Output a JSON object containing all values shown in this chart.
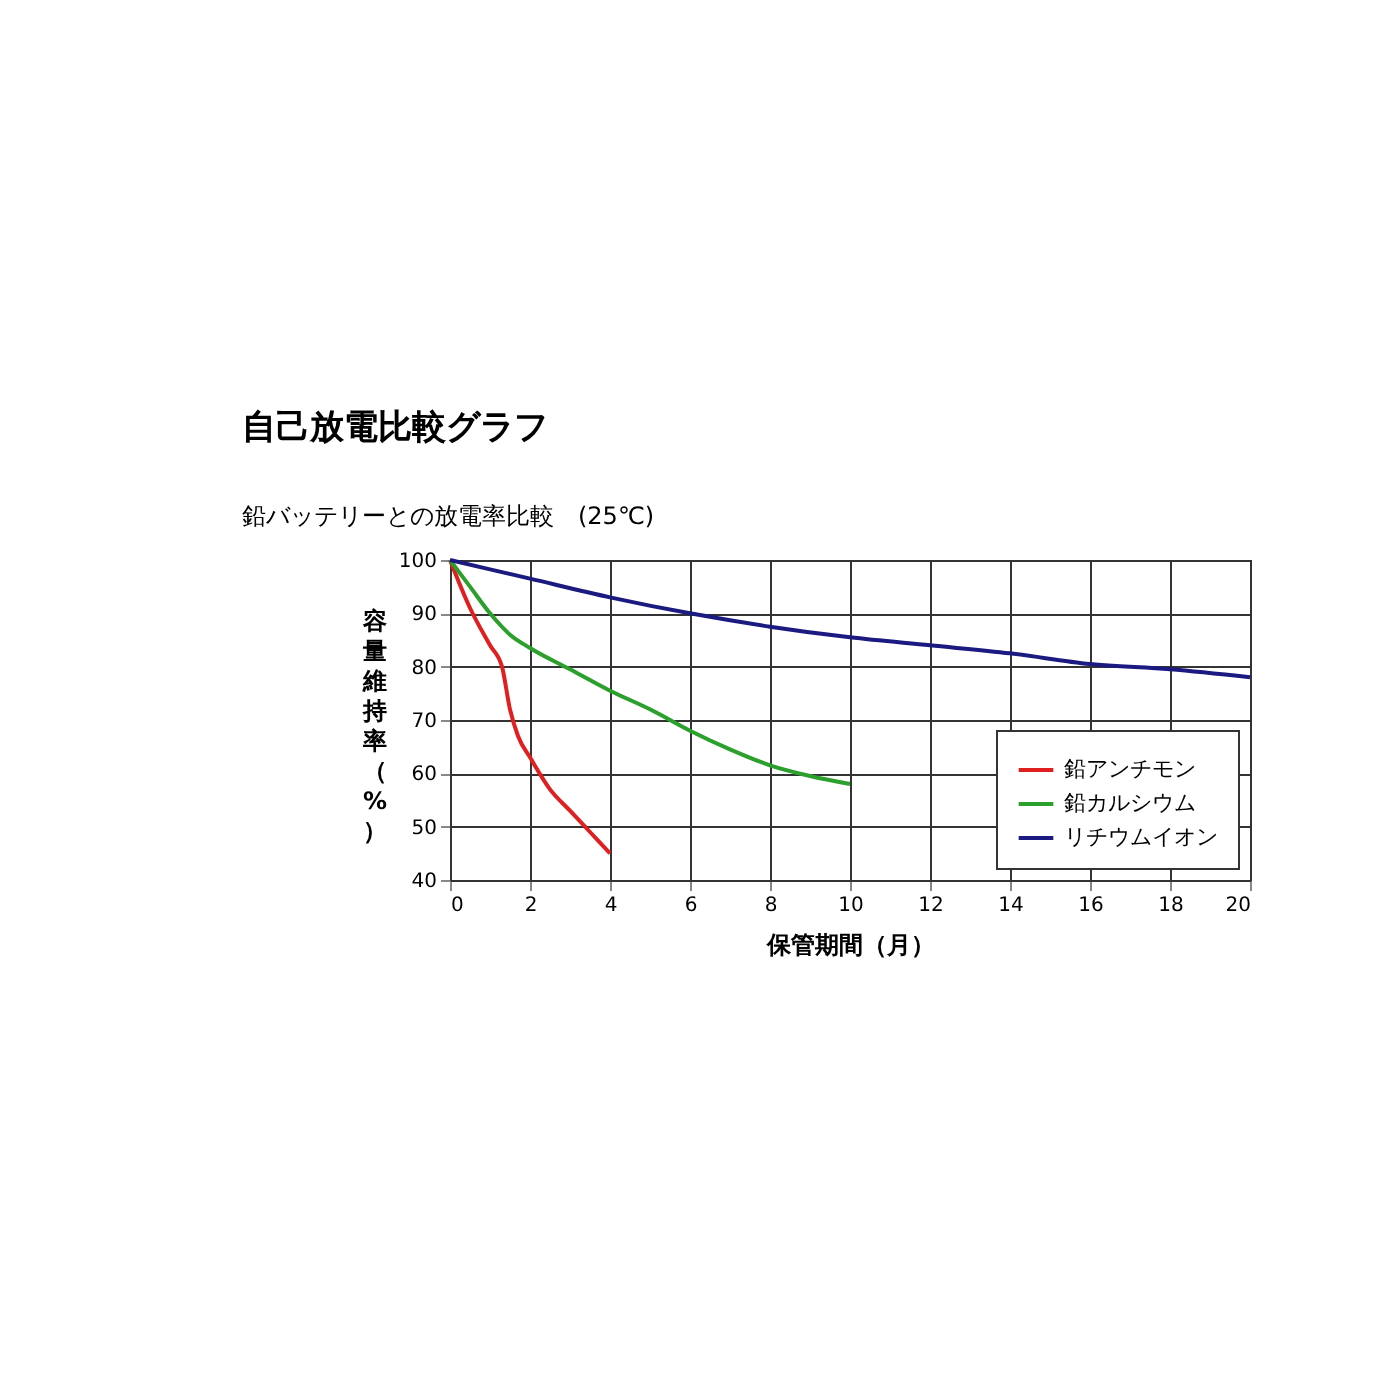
{
  "chart_data": {
    "type": "line",
    "title": "自己放電比較グラフ",
    "subtitle": "鉛バッテリーとの放電率比較　(25℃)",
    "xlabel": "保管期間（月）",
    "ylabel": "容量維持率（%）",
    "xlim": [
      0,
      20
    ],
    "xticks": [
      0,
      2,
      4,
      6,
      8,
      10,
      12,
      14,
      16,
      18,
      20
    ],
    "ylim": [
      40,
      100
    ],
    "yticks": [
      40,
      50,
      60,
      70,
      80,
      90,
      100
    ],
    "grid": true,
    "legend": "bottom right",
    "marker": "none",
    "line_style": "solid",
    "series": [
      {
        "name": "鉛アンチモン",
        "color": "#e02020",
        "x": [
          0,
          0.5,
          1,
          1.3,
          1.5,
          1.7,
          2,
          2.5,
          3,
          3.5,
          4
        ],
        "values": [
          100,
          91,
          84,
          80,
          72,
          67,
          63,
          57,
          53,
          49,
          45
        ]
      },
      {
        "name": "鉛カルシウム",
        "color": "#2ca02c",
        "x": [
          0,
          0.5,
          1,
          1.5,
          2,
          3,
          4,
          5,
          6,
          7,
          8,
          9,
          10
        ],
        "values": [
          100,
          95,
          90,
          86,
          83.5,
          79.5,
          75.5,
          72,
          68,
          64.5,
          61.5,
          59.5,
          58
        ]
      },
      {
        "name": "リチウムイオン",
        "color": "#1a1a80",
        "x": [
          0,
          2,
          4,
          6,
          8,
          10,
          12,
          14,
          16,
          18,
          20
        ],
        "values": [
          100,
          96.5,
          93,
          90,
          87.5,
          85.5,
          84,
          82.5,
          80.5,
          79.5,
          78
        ]
      }
    ]
  }
}
